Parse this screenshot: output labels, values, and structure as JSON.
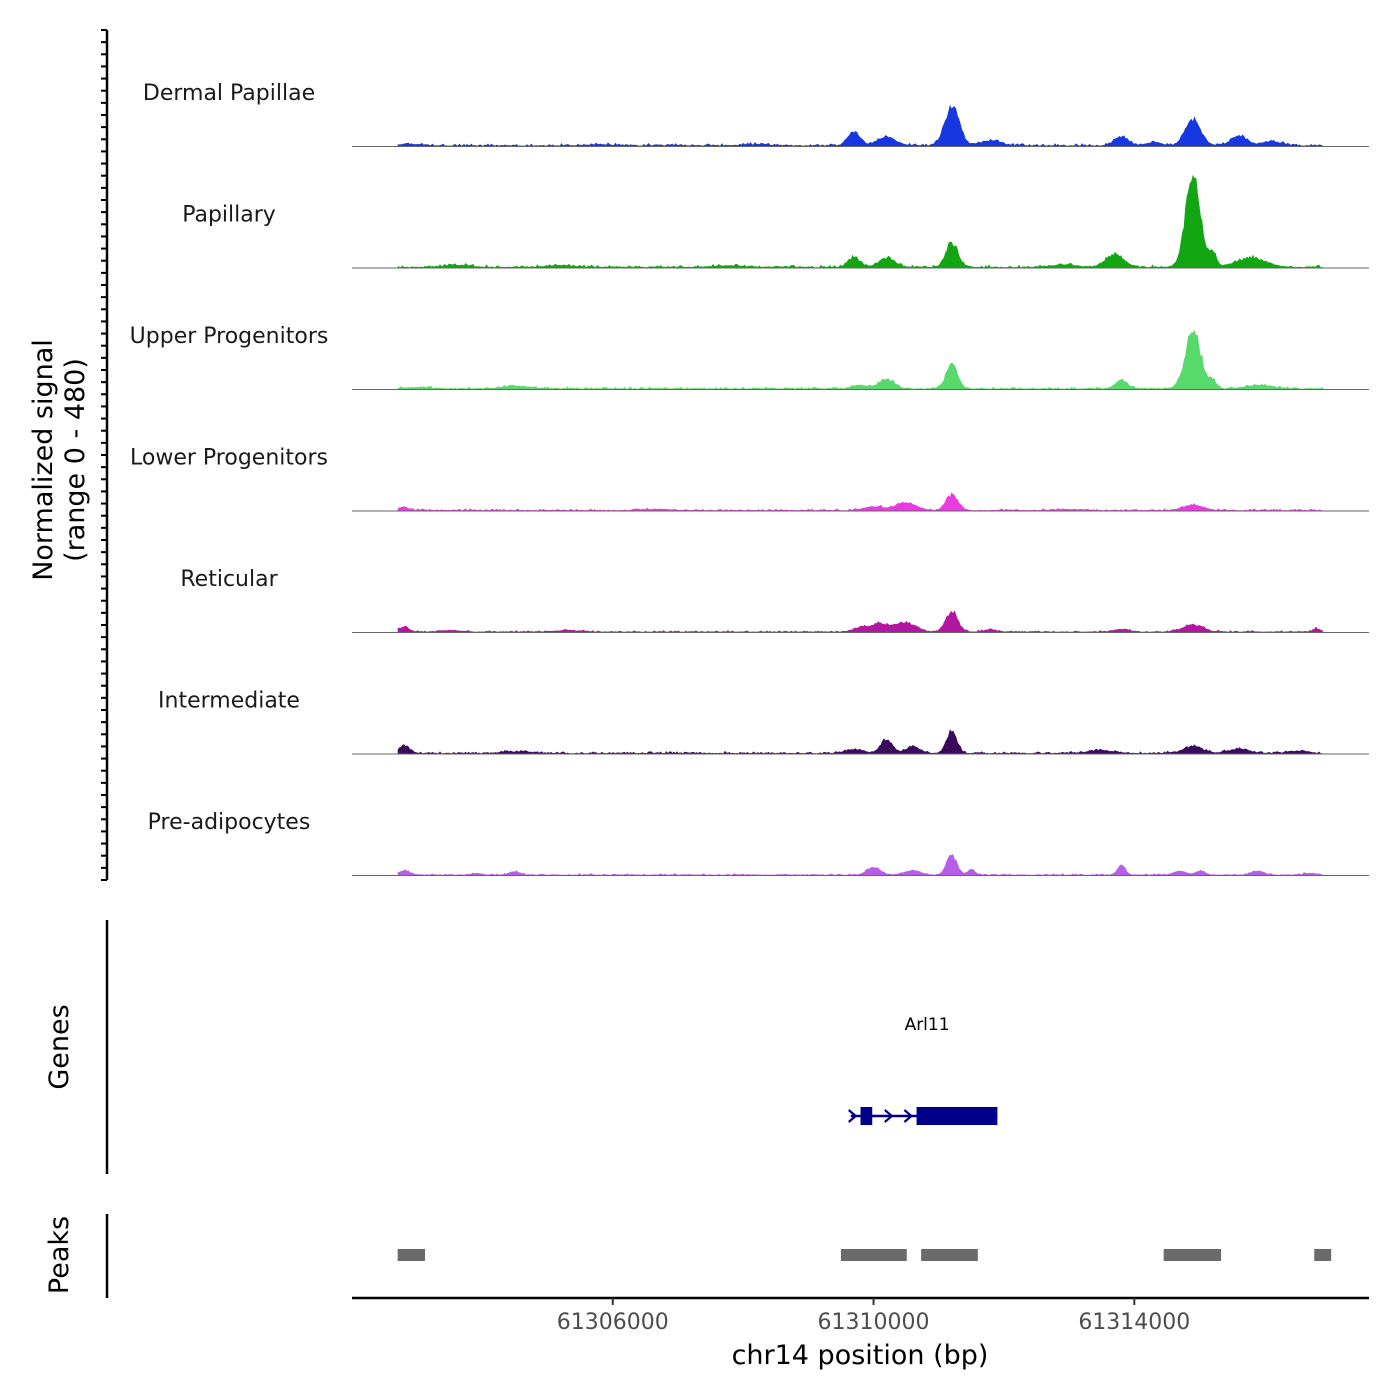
{
  "chart_data": {
    "type": "area",
    "title": "",
    "ylabel_line1": "Normalized signal",
    "ylabel_line2": "(range 0 - 480)",
    "xlabel": "chr14 position (bp)",
    "xlim": [
      61302000,
      61317600
    ],
    "ylim": [
      0,
      480
    ],
    "x_ticks": [
      {
        "value": 61306000,
        "label": "61306000"
      },
      {
        "value": 61310000,
        "label": "61310000"
      },
      {
        "value": 61314000,
        "label": "61314000"
      }
    ],
    "series": [
      {
        "name": "Dermal Papillae",
        "color": "#1737e0",
        "baseline": 14,
        "peaks": [
          [
            61311200,
            190,
            110
          ],
          [
            61309700,
            70,
            90
          ],
          [
            61310200,
            40,
            150
          ],
          [
            61311800,
            25,
            150
          ],
          [
            61313800,
            45,
            110
          ],
          [
            61314900,
            120,
            120
          ],
          [
            61314300,
            15,
            120
          ],
          [
            61315600,
            45,
            120
          ],
          [
            61316100,
            20,
            150
          ],
          [
            61302900,
            6,
            200
          ],
          [
            61305800,
            6,
            200
          ],
          [
            61308200,
            6,
            200
          ]
        ]
      },
      {
        "name": "Papillary",
        "color": "#12a612",
        "baseline": 14,
        "peaks": [
          [
            61314900,
            455,
            110
          ],
          [
            61315200,
            70,
            60
          ],
          [
            61311200,
            120,
            90
          ],
          [
            61309700,
            45,
            90
          ],
          [
            61310200,
            45,
            120
          ],
          [
            61313700,
            60,
            140
          ],
          [
            61315800,
            45,
            220
          ],
          [
            61303600,
            10,
            200
          ],
          [
            61305200,
            10,
            200
          ],
          [
            61307800,
            8,
            200
          ],
          [
            61312900,
            12,
            180
          ]
        ]
      },
      {
        "name": "Upper Progenitors",
        "color": "#58d96c",
        "baseline": 12,
        "peaks": [
          [
            61314900,
            270,
            120
          ],
          [
            61315200,
            35,
            60
          ],
          [
            61311200,
            115,
            90
          ],
          [
            61310200,
            45,
            120
          ],
          [
            61309800,
            20,
            100
          ],
          [
            61313800,
            40,
            90
          ],
          [
            61315900,
            18,
            200
          ],
          [
            61304500,
            14,
            200
          ],
          [
            61303000,
            6,
            200
          ]
        ]
      },
      {
        "name": "Lower Progenitors",
        "color": "#e83be0",
        "baseline": 10,
        "peaks": [
          [
            61311200,
            75,
            90
          ],
          [
            61310500,
            35,
            160
          ],
          [
            61310000,
            18,
            150
          ],
          [
            61314900,
            25,
            150
          ],
          [
            61302800,
            14,
            80
          ],
          [
            61306700,
            6,
            200
          ],
          [
            61313000,
            6,
            200
          ]
        ]
      },
      {
        "name": "Reticular",
        "color": "#b3179f",
        "baseline": 10,
        "peaks": [
          [
            61311200,
            100,
            90
          ],
          [
            61310500,
            45,
            140
          ],
          [
            61310100,
            40,
            150
          ],
          [
            61309800,
            20,
            100
          ],
          [
            61314900,
            35,
            150
          ],
          [
            61313800,
            12,
            120
          ],
          [
            61302800,
            24,
            80
          ],
          [
            61303500,
            8,
            150
          ],
          [
            61305300,
            8,
            180
          ],
          [
            61316800,
            16,
            60
          ],
          [
            61311800,
            10,
            100
          ]
        ]
      },
      {
        "name": "Intermediate",
        "color": "#3a0a5c",
        "baseline": 12,
        "peaks": [
          [
            61311200,
            105,
            80
          ],
          [
            61310200,
            65,
            90
          ],
          [
            61310600,
            30,
            110
          ],
          [
            61309700,
            18,
            140
          ],
          [
            61314900,
            35,
            140
          ],
          [
            61313500,
            12,
            200
          ],
          [
            61315600,
            20,
            150
          ],
          [
            61302800,
            38,
            80
          ],
          [
            61316500,
            10,
            150
          ],
          [
            61304500,
            8,
            200
          ]
        ]
      },
      {
        "name": "Pre-adipocytes",
        "color": "#b65ee8",
        "baseline": 9,
        "peaks": [
          [
            61311200,
            90,
            80
          ],
          [
            61310000,
            40,
            100
          ],
          [
            61310600,
            22,
            120
          ],
          [
            61311500,
            25,
            60
          ],
          [
            61313800,
            45,
            60
          ],
          [
            61314700,
            18,
            90
          ],
          [
            61315000,
            20,
            70
          ],
          [
            61315900,
            20,
            90
          ],
          [
            61302800,
            18,
            90
          ],
          [
            61304500,
            16,
            80
          ],
          [
            61303900,
            8,
            80
          ],
          [
            61316700,
            8,
            100
          ]
        ]
      }
    ],
    "genes_track": {
      "title": "Genes",
      "genes": [
        {
          "name": "Arl11",
          "color": "#00008b",
          "start": 61309650,
          "end": 61311900,
          "exons": [
            [
              61309800,
              61309980
            ],
            [
              61310660,
              61311900
            ]
          ],
          "arrows": [
            61309950,
            61310250,
            61310550
          ]
        }
      ]
    },
    "peaks_track": {
      "title": "Peaks",
      "color": "#6b6b6b",
      "regions": [
        [
          61302700,
          61303120
        ],
        [
          61309500,
          61310510
        ],
        [
          61310730,
          61311600
        ],
        [
          61314450,
          61315330
        ],
        [
          61316760,
          61317020
        ]
      ]
    }
  }
}
